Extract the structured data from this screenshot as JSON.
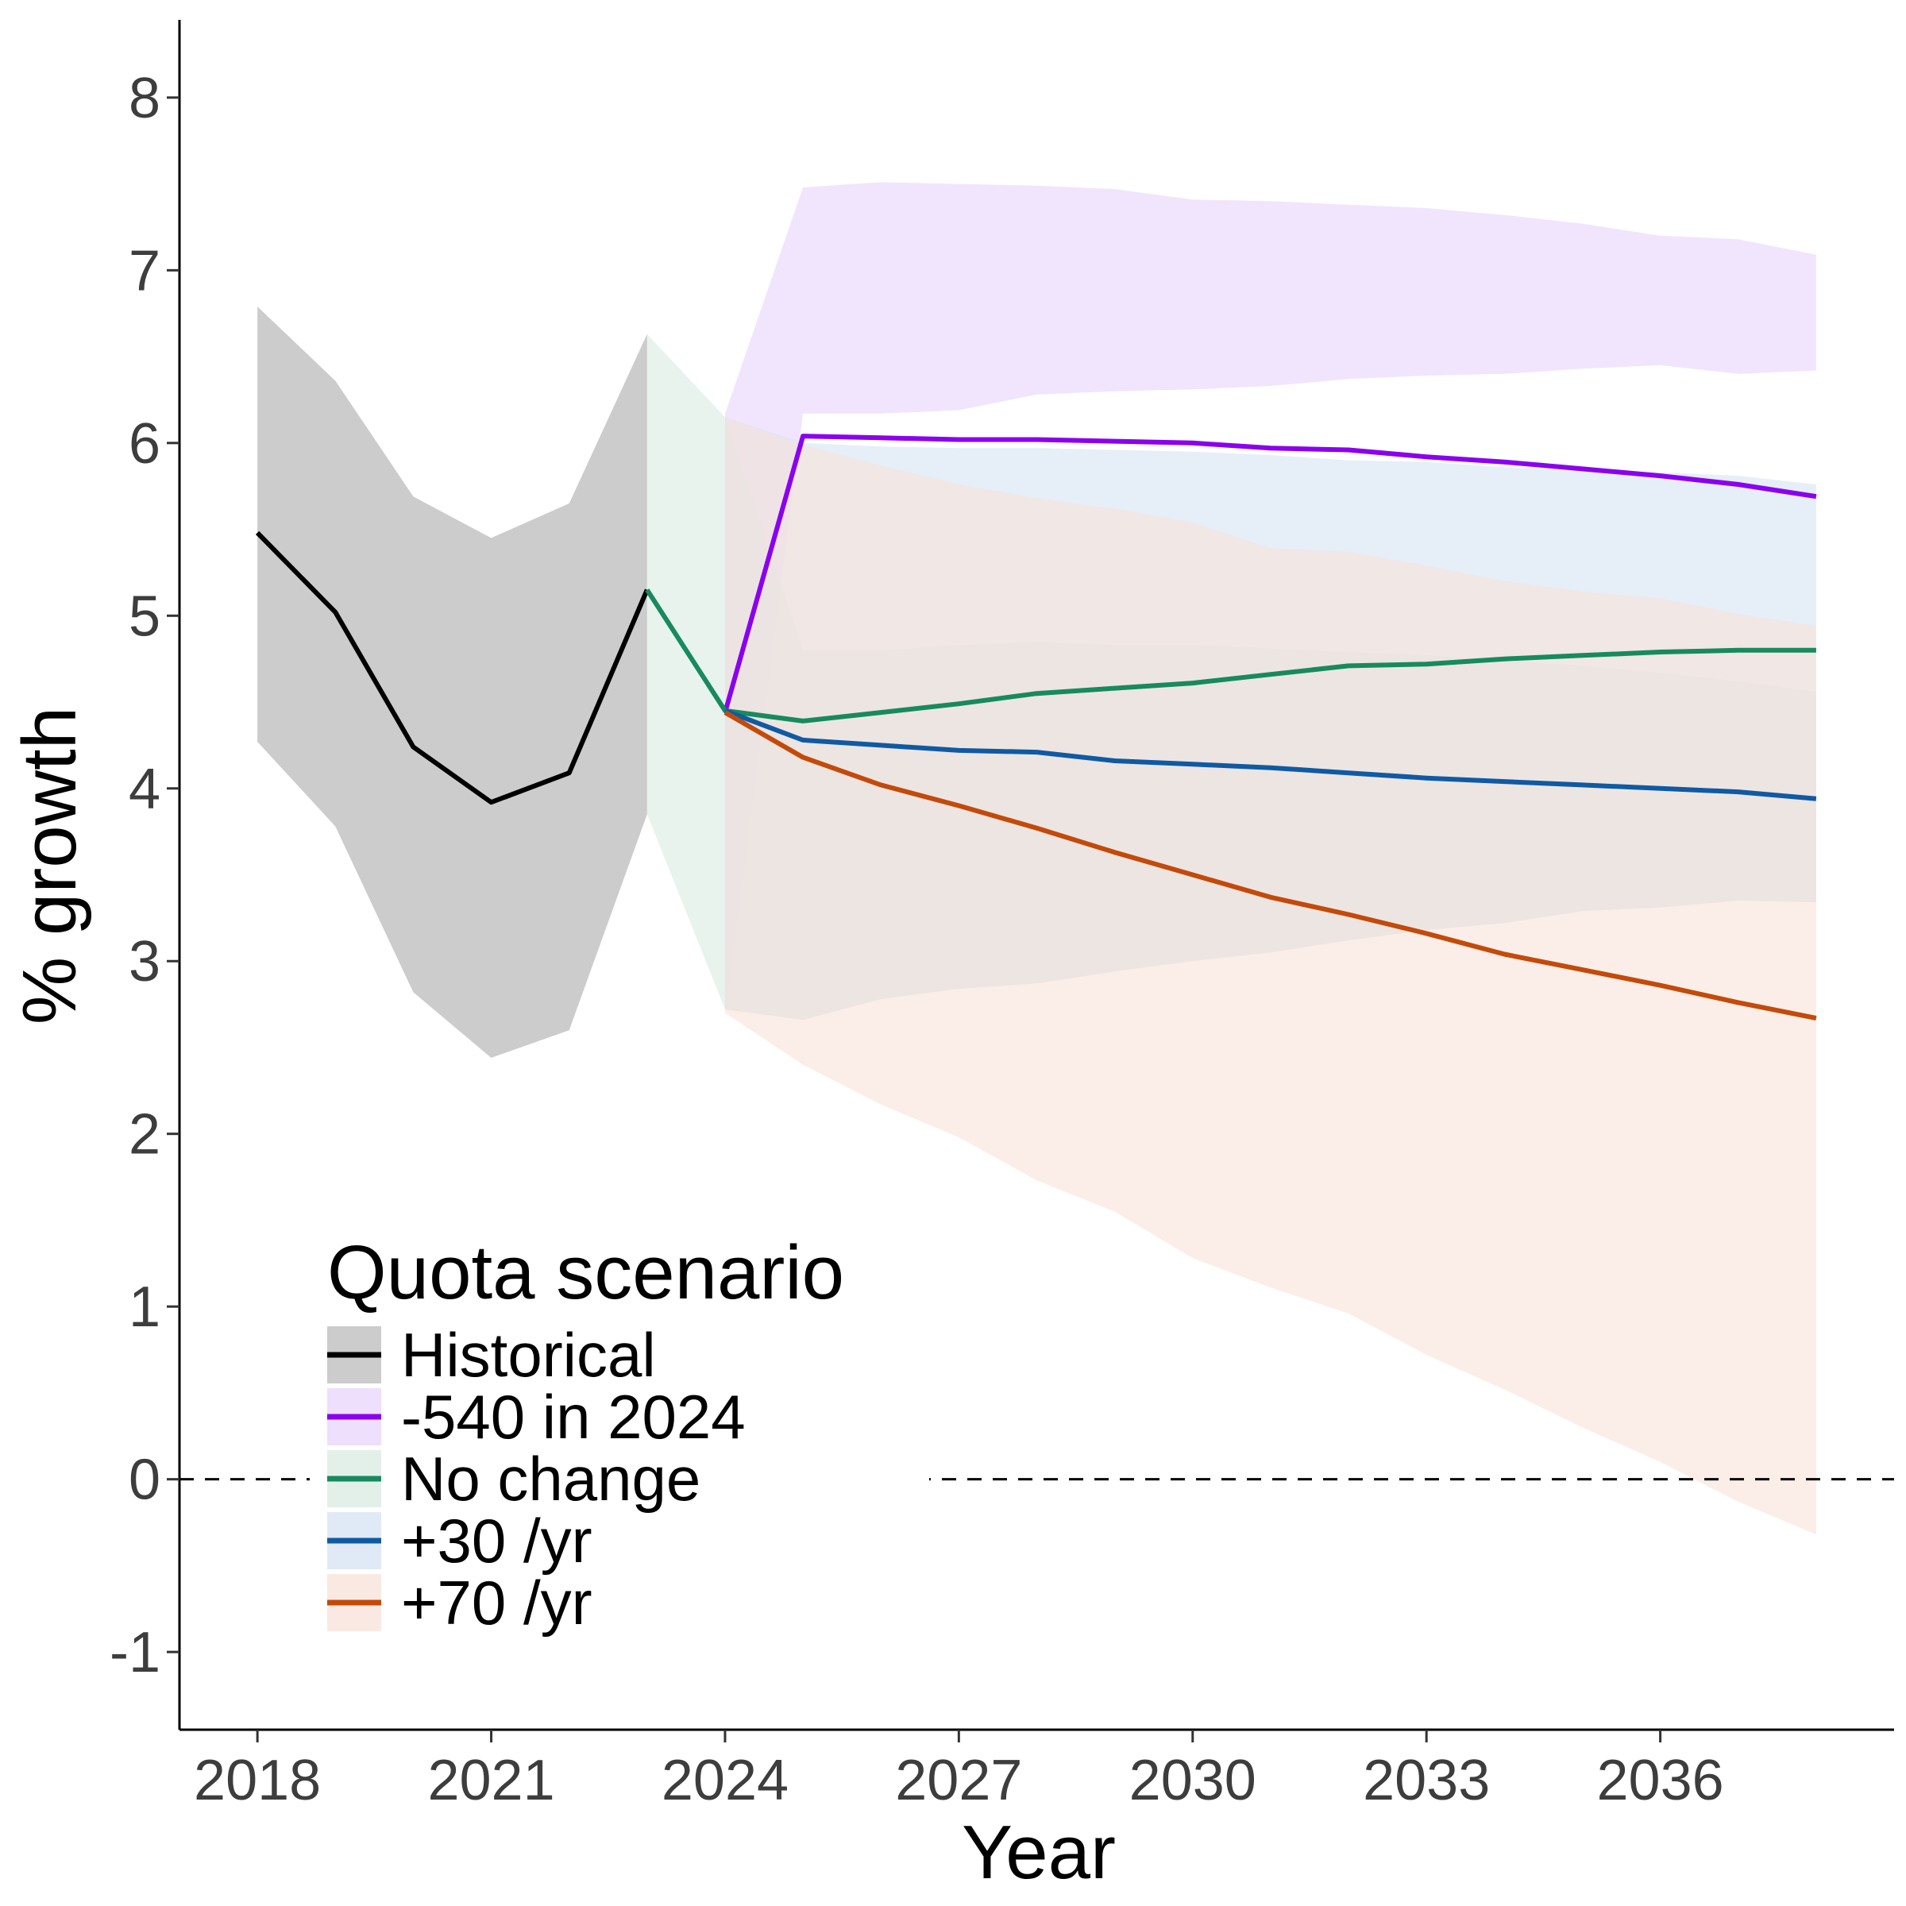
{
  "chart_data": {
    "type": "line",
    "xlabel": "Year",
    "ylabel": "% growth",
    "xlim": [
      2017,
      2039
    ],
    "ylim": [
      -1.45,
      8.45
    ],
    "x_ticks": [
      2018,
      2021,
      2024,
      2027,
      2030,
      2033,
      2036
    ],
    "y_ticks": [
      -1,
      0,
      1,
      2,
      3,
      4,
      5,
      6,
      7,
      8
    ],
    "reference_line": {
      "y": 0,
      "style": "dashed"
    },
    "grid": false,
    "legend": {
      "title": "Quota scenario",
      "placement": "bottom-left inside",
      "entries": [
        "Historical",
        "-540 in 2024",
        "No change",
        "+30 /yr",
        "+70 /yr"
      ]
    },
    "series": [
      {
        "name": "Historical",
        "color": "#000000",
        "band_color": "#cccccc",
        "band_opacity": 1,
        "x": [
          2018,
          2019,
          2020,
          2021,
          2022,
          2023
        ],
        "y": [
          5.48,
          5.02,
          4.24,
          3.92,
          4.09,
          5.15
        ],
        "lower": [
          4.27,
          3.78,
          2.82,
          2.44,
          2.6,
          3.85
        ],
        "upper": [
          6.79,
          6.36,
          5.69,
          5.45,
          5.65,
          6.63
        ]
      },
      {
        "name": "-540 in 2024",
        "color": "#8b00ee",
        "band_color": "#e8d4fb",
        "band_opacity": 0.6,
        "x": [
          2024,
          2025,
          2026,
          2027,
          2028,
          2029,
          2030,
          2031,
          2032,
          2033,
          2034,
          2035,
          2036,
          2037,
          2038
        ],
        "y": [
          4.44,
          6.04,
          6.03,
          6.02,
          6.02,
          6.01,
          6.0,
          5.97,
          5.96,
          5.92,
          5.89,
          5.85,
          5.81,
          5.76,
          5.69
        ],
        "lower": [
          2.72,
          6.17,
          6.17,
          6.19,
          6.28,
          6.3,
          6.31,
          6.33,
          6.37,
          6.39,
          6.4,
          6.43,
          6.45,
          6.4,
          6.42
        ],
        "upper": [
          6.17,
          7.48,
          7.51,
          7.5,
          7.49,
          7.47,
          7.41,
          7.4,
          7.38,
          7.36,
          7.32,
          7.27,
          7.2,
          7.18,
          7.09
        ]
      },
      {
        "name": "No change",
        "color": "#178a5e",
        "band_color": "#d8ebe2",
        "band_opacity": 0.6,
        "x": [
          2023,
          2024,
          2025,
          2026,
          2027,
          2028,
          2029,
          2030,
          2031,
          2032,
          2033,
          2034,
          2035,
          2036,
          2037,
          2038
        ],
        "y": [
          5.15,
          4.45,
          4.39,
          4.44,
          4.49,
          4.55,
          4.58,
          4.61,
          4.66,
          4.71,
          4.72,
          4.75,
          4.77,
          4.79,
          4.8,
          4.8
        ],
        "lower": [
          3.85,
          2.72,
          2.66,
          2.78,
          2.84,
          2.87,
          2.94,
          3.0,
          3.05,
          3.12,
          3.18,
          3.22,
          3.29,
          3.31,
          3.35,
          3.34
        ],
        "upper": [
          6.63,
          6.15,
          4.8,
          4.8,
          4.83,
          4.85,
          4.83,
          4.83,
          4.81,
          4.79,
          4.77,
          4.74,
          4.71,
          4.67,
          4.62,
          4.56
        ]
      },
      {
        "name": "+30 /yr",
        "color": "#0f5aa3",
        "band_color": "#d5e2f3",
        "band_opacity": 0.6,
        "x": [
          2024,
          2025,
          2026,
          2027,
          2028,
          2029,
          2030,
          2031,
          2032,
          2033,
          2034,
          2035,
          2036,
          2037,
          2038
        ],
        "y": [
          4.45,
          4.28,
          4.25,
          4.22,
          4.21,
          4.16,
          4.14,
          4.12,
          4.09,
          4.06,
          4.04,
          4.02,
          4.0,
          3.98,
          3.94
        ],
        "lower": [
          2.72,
          2.66,
          2.78,
          2.84,
          2.87,
          2.94,
          3.0,
          3.05,
          3.12,
          3.18,
          3.22,
          3.29,
          3.31,
          3.35,
          3.34
        ],
        "upper": [
          6.15,
          6.0,
          5.98,
          5.97,
          5.97,
          5.96,
          5.95,
          5.93,
          5.9,
          5.89,
          5.86,
          5.84,
          5.83,
          5.81,
          5.76
        ]
      },
      {
        "name": "+70 /yr",
        "color": "#c44a0a",
        "band_color": "#f8e2d8",
        "band_opacity": 0.6,
        "x": [
          2024,
          2025,
          2026,
          2027,
          2028,
          2029,
          2030,
          2031,
          2032,
          2033,
          2034,
          2035,
          2036,
          2037,
          2038
        ],
        "y": [
          4.44,
          4.18,
          4.02,
          3.9,
          3.77,
          3.63,
          3.5,
          3.37,
          3.27,
          3.16,
          3.04,
          2.95,
          2.86,
          2.76,
          2.67
        ],
        "lower": [
          2.7,
          2.4,
          2.17,
          1.98,
          1.73,
          1.55,
          1.28,
          1.11,
          0.96,
          0.72,
          0.52,
          0.3,
          0.1,
          -0.13,
          -0.32
        ],
        "upper": [
          6.15,
          5.99,
          5.87,
          5.76,
          5.68,
          5.62,
          5.54,
          5.39,
          5.37,
          5.29,
          5.2,
          5.14,
          5.1,
          5.01,
          4.94
        ]
      }
    ]
  }
}
